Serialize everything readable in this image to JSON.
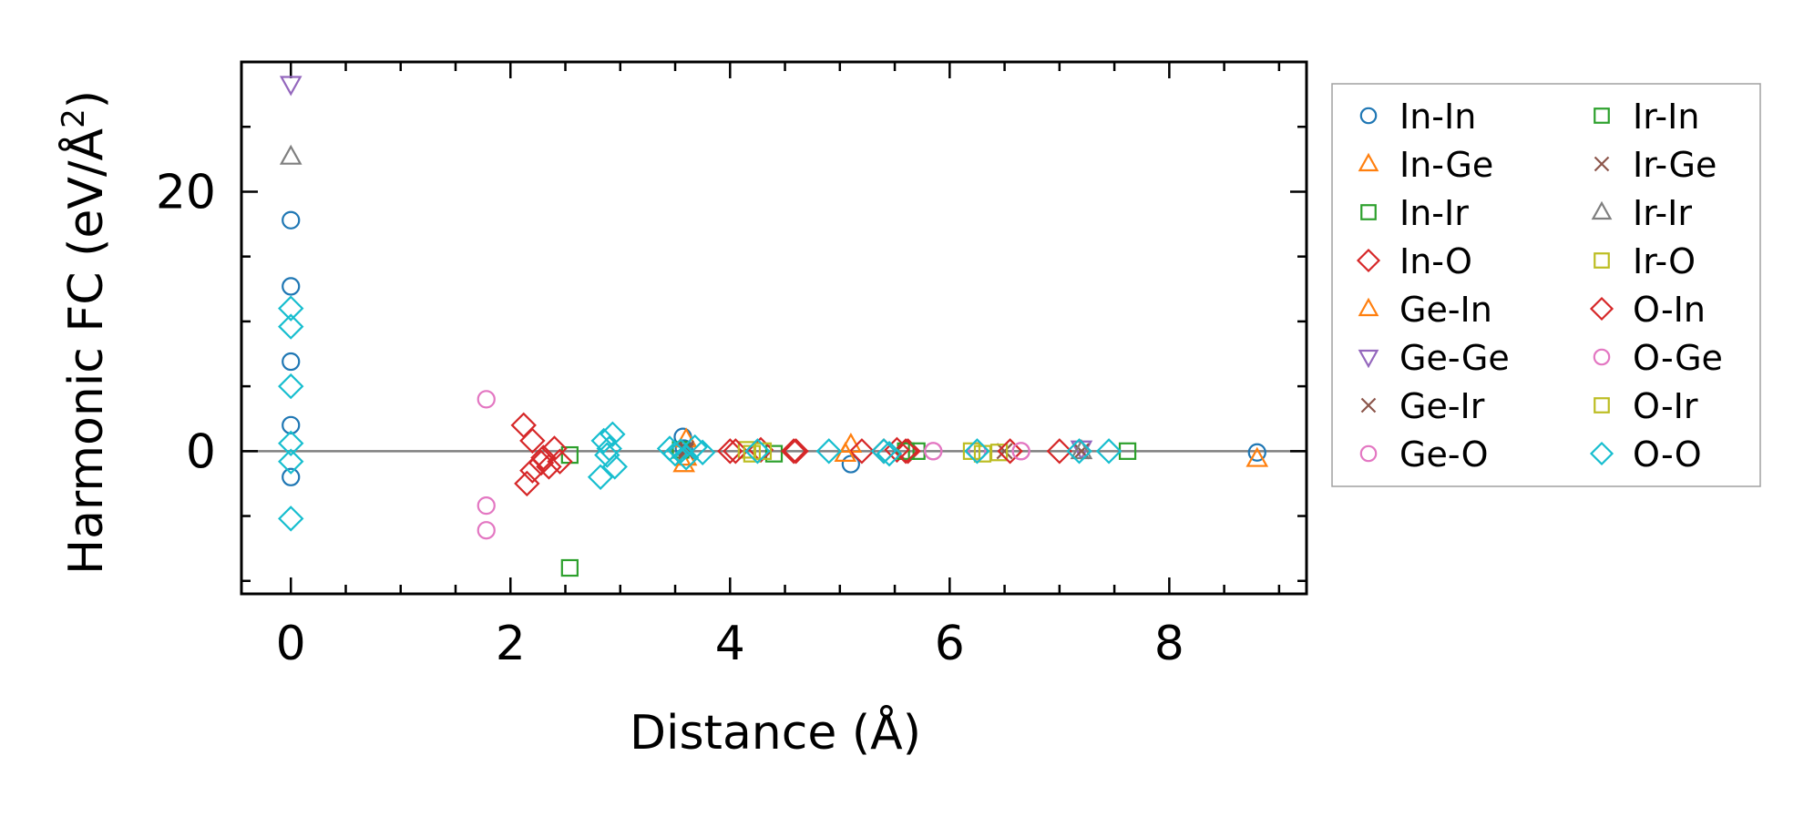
{
  "chart_data": {
    "type": "scatter",
    "title": "",
    "xlabel": "Distance (Å)",
    "ylabel_main": "Harmonic FC (eV/Å",
    "ylabel_sup": "2",
    "ylabel_close": ")",
    "xlim": [
      -0.45,
      9.25
    ],
    "ylim": [
      -11,
      30
    ],
    "xticks": [
      0,
      2,
      4,
      6,
      8
    ],
    "xtick_labels": [
      "0",
      "2",
      "4",
      "6",
      "8"
    ],
    "yticks": [
      0,
      20
    ],
    "ytick_labels": [
      "0",
      "20"
    ],
    "x_minor": 0.5,
    "y_minor": 5,
    "zero_line": true,
    "grid": false,
    "legend_position": "right-outside",
    "series": [
      {
        "name": "In-In",
        "marker": "circle",
        "color": "#1f77b4",
        "points": [
          [
            0,
            17.8
          ],
          [
            0,
            12.7
          ],
          [
            0,
            6.9
          ],
          [
            0,
            2.0
          ],
          [
            0,
            -2.0
          ],
          [
            3.57,
            1.1
          ],
          [
            3.58,
            0.2
          ],
          [
            5.1,
            -1.0
          ],
          [
            8.8,
            -0.1
          ]
        ]
      },
      {
        "name": "In-Ge",
        "marker": "triangle-up",
        "color": "#ff7f0e",
        "points": [
          [
            3.58,
            -1.0
          ],
          [
            3.6,
            0.9
          ],
          [
            5.1,
            0.5
          ],
          [
            8.8,
            -0.6
          ]
        ]
      },
      {
        "name": "In-Ir",
        "marker": "square",
        "color": "#2ca02c",
        "points": [
          [
            2.54,
            -0.3
          ],
          [
            3.55,
            0.1
          ],
          [
            4.4,
            -0.2
          ],
          [
            5.7,
            0.0
          ]
        ]
      },
      {
        "name": "In-O",
        "marker": "diamond",
        "color": "#d62728",
        "points": [
          [
            2.12,
            2.0
          ],
          [
            2.2,
            0.8
          ],
          [
            2.3,
            -0.5
          ],
          [
            2.4,
            0.2
          ],
          [
            2.45,
            -0.8
          ],
          [
            4.0,
            0.0
          ],
          [
            4.28,
            0.1
          ],
          [
            4.58,
            0.0
          ],
          [
            5.2,
            0.0
          ],
          [
            5.4,
            0.0
          ],
          [
            5.52,
            0.1
          ],
          [
            5.62,
            0.0
          ]
        ]
      },
      {
        "name": "Ge-In",
        "marker": "triangle-up",
        "color": "#ff7f0e",
        "points": [
          [
            3.6,
            -0.5
          ],
          [
            5.05,
            -0.2
          ]
        ]
      },
      {
        "name": "Ge-Ge",
        "marker": "triangle-down",
        "color": "#9467bd",
        "points": [
          [
            0,
            28.3
          ],
          [
            7.2,
            0.2
          ]
        ]
      },
      {
        "name": "Ge-Ir",
        "marker": "x",
        "color": "#8c564b",
        "points": [
          [
            3.6,
            0.0
          ],
          [
            6.5,
            0.0
          ]
        ]
      },
      {
        "name": "Ge-O",
        "marker": "circle",
        "color": "#e377c2",
        "points": [
          [
            1.78,
            4.0
          ],
          [
            1.78,
            -4.2
          ],
          [
            1.78,
            -6.1
          ],
          [
            5.85,
            0.0
          ],
          [
            6.25,
            0.0
          ],
          [
            6.65,
            0.0
          ]
        ]
      },
      {
        "name": "Ir-In",
        "marker": "square",
        "color": "#2ca02c",
        "points": [
          [
            2.54,
            -9.0
          ],
          [
            5.6,
            0.0
          ],
          [
            7.62,
            0.0
          ]
        ]
      },
      {
        "name": "Ir-Ge",
        "marker": "x",
        "color": "#8c564b",
        "points": [
          [
            3.6,
            0.2
          ],
          [
            7.2,
            0.0
          ]
        ]
      },
      {
        "name": "Ir-Ir",
        "marker": "triangle-up",
        "color": "#7f7f7f",
        "points": [
          [
            0,
            22.7
          ],
          [
            7.2,
            0.0
          ]
        ]
      },
      {
        "name": "Ir-O",
        "marker": "square",
        "color": "#bcbd22",
        "points": [
          [
            4.15,
            0.1
          ],
          [
            4.3,
            0.0
          ],
          [
            6.2,
            0.0
          ],
          [
            6.45,
            -0.1
          ]
        ]
      },
      {
        "name": "O-In",
        "marker": "diamond",
        "color": "#d62728",
        "points": [
          [
            2.15,
            -2.5
          ],
          [
            2.2,
            -1.5
          ],
          [
            2.28,
            -0.9
          ],
          [
            2.35,
            -1.2
          ],
          [
            4.05,
            0.0
          ],
          [
            4.6,
            0.0
          ],
          [
            5.6,
            0.0
          ],
          [
            7.0,
            0.0
          ],
          [
            6.55,
            0.0
          ]
        ]
      },
      {
        "name": "O-Ge",
        "marker": "circle",
        "color": "#e377c2",
        "points": [
          [
            5.85,
            0.0
          ],
          [
            6.65,
            0.0
          ]
        ]
      },
      {
        "name": "O-Ir",
        "marker": "square",
        "color": "#bcbd22",
        "points": [
          [
            4.2,
            -0.2
          ],
          [
            6.3,
            -0.2
          ]
        ]
      },
      {
        "name": "O-O",
        "marker": "diamond",
        "color": "#17becf",
        "points": [
          [
            0,
            11.0
          ],
          [
            0,
            9.6
          ],
          [
            0,
            5.0
          ],
          [
            0,
            0.6
          ],
          [
            0,
            -0.8
          ],
          [
            0,
            -5.2
          ],
          [
            2.82,
            -2.0
          ],
          [
            2.85,
            0.8
          ],
          [
            2.88,
            -0.3
          ],
          [
            2.9,
            0.2
          ],
          [
            2.93,
            1.3
          ],
          [
            2.95,
            -1.2
          ],
          [
            3.45,
            0.2
          ],
          [
            3.5,
            -0.2
          ],
          [
            3.55,
            0.0
          ],
          [
            3.6,
            -0.5
          ],
          [
            3.68,
            0.3
          ],
          [
            3.75,
            -0.1
          ],
          [
            4.25,
            0.0
          ],
          [
            4.9,
            0.0
          ],
          [
            5.4,
            0.0
          ],
          [
            5.45,
            -0.2
          ],
          [
            6.25,
            0.0
          ],
          [
            7.18,
            0.0
          ],
          [
            7.45,
            0.0
          ]
        ]
      }
    ]
  }
}
